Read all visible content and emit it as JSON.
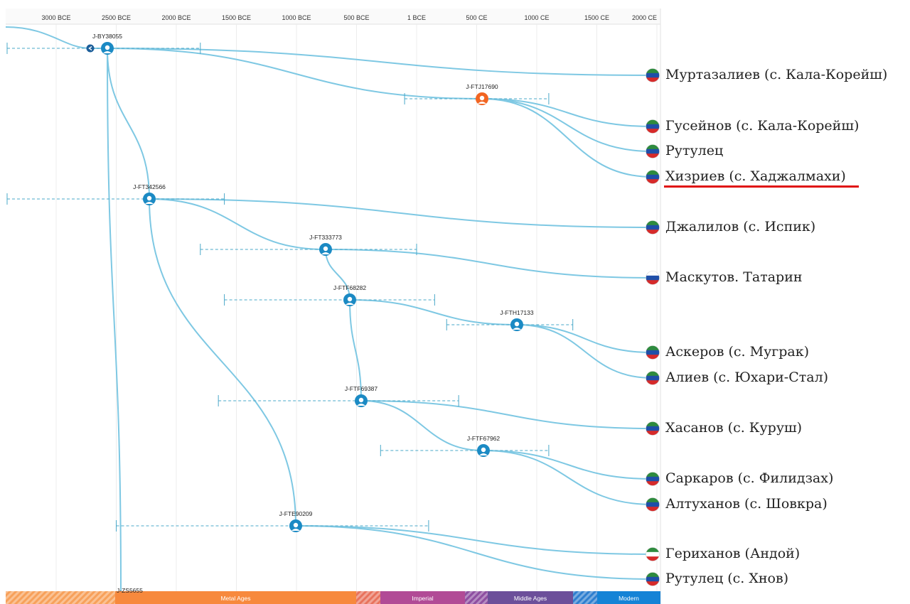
{
  "timeline": {
    "ticks": [
      {
        "label": "3000 BCE",
        "year": -3000
      },
      {
        "label": "2500 BCE",
        "year": -2500
      },
      {
        "label": "2000 BCE",
        "year": -2000
      },
      {
        "label": "1500 BCE",
        "year": -1500
      },
      {
        "label": "1000 BCE",
        "year": -1000
      },
      {
        "label": "500 BCE",
        "year": -500
      },
      {
        "label": "1 BCE",
        "year": 0
      },
      {
        "label": "500 CE",
        "year": 500
      },
      {
        "label": "1000 CE",
        "year": 1000
      },
      {
        "label": "1500 CE",
        "year": 1500
      },
      {
        "label": "2000 CE",
        "year": 2000
      }
    ],
    "eras": [
      {
        "label": "",
        "color": "#f7a15b",
        "hatched": true
      },
      {
        "label": "Metal Ages",
        "color": "#f7893d",
        "hatched": false
      },
      {
        "label": "",
        "color": "#e8735d",
        "hatched": true
      },
      {
        "label": "Imperial",
        "color": "#b14b96",
        "hatched": false
      },
      {
        "label": "",
        "color": "#8e4fa1",
        "hatched": true
      },
      {
        "label": "Middle Ages",
        "color": "#6c4f9a",
        "hatched": false
      },
      {
        "label": "",
        "color": "#2f7fcf",
        "hatched": true
      },
      {
        "label": "Modern",
        "color": "#1583d6",
        "hatched": false
      }
    ]
  },
  "nodes": [
    {
      "id": "J-BY38055",
      "year": -2500,
      "range": [
        -3800,
        -1800
      ]
    },
    {
      "id": "J-FTJ17690",
      "year": 550,
      "range": [
        -100,
        1100
      ]
    },
    {
      "id": "J-FT342566",
      "year": -2150,
      "range": [
        -3700,
        -1600
      ]
    },
    {
      "id": "J-FT333773",
      "year": -750,
      "range": [
        -1800,
        0
      ]
    },
    {
      "id": "J-FTF68282",
      "year": -550,
      "range": [
        -1600,
        150
      ]
    },
    {
      "id": "J-FTH17133",
      "year": 800,
      "range": [
        250,
        1300
      ]
    },
    {
      "id": "J-FTF69387",
      "year": -450,
      "range": [
        -1650,
        350
      ]
    },
    {
      "id": "J-FTF67962",
      "year": 550,
      "range": [
        -300,
        1100
      ]
    },
    {
      "id": "J-FTE90209",
      "year": -1000,
      "range": [
        -2500,
        100
      ]
    }
  ],
  "samples": [
    {
      "label": "Муртазалиев (с. Кала-Корейш)",
      "flag": "dagestan"
    },
    {
      "label": "Гусейнов (с. Кала-Корейш)",
      "flag": "dagestan"
    },
    {
      "label": "Рутулец",
      "flag": "dagestan"
    },
    {
      "label": "Хизриев (с. Хаджалмахи)",
      "flag": "dagestan",
      "highlighted": true
    },
    {
      "label": "Джалилов (с. Испик)",
      "flag": "dagestan"
    },
    {
      "label": "Маскутов. Татарин",
      "flag": "russia"
    },
    {
      "label": "Аскеров (с. Муграк)",
      "flag": "dagestan"
    },
    {
      "label": "Алиев (с. Юхари-Стал)",
      "flag": "dagestan"
    },
    {
      "label": "Хасанов (с. Куруш)",
      "flag": "dagestan"
    },
    {
      "label": "Саркаров (с. Филидзах)",
      "flag": "dagestan"
    },
    {
      "label": "Алтуханов (с. Шовкра)",
      "flag": "dagestan"
    },
    {
      "label": "Гериханов (Андой)",
      "flag": "chechnya"
    },
    {
      "label": "Рутулец (с. Хнов)",
      "flag": "dagestan"
    }
  ],
  "bottom_node_label": "J-ZS5655",
  "colors": {
    "branch": "#7ec8e3",
    "node": "#1b8ac4",
    "node_highlight": "#f26522",
    "highlight_underline": "#e01010"
  }
}
